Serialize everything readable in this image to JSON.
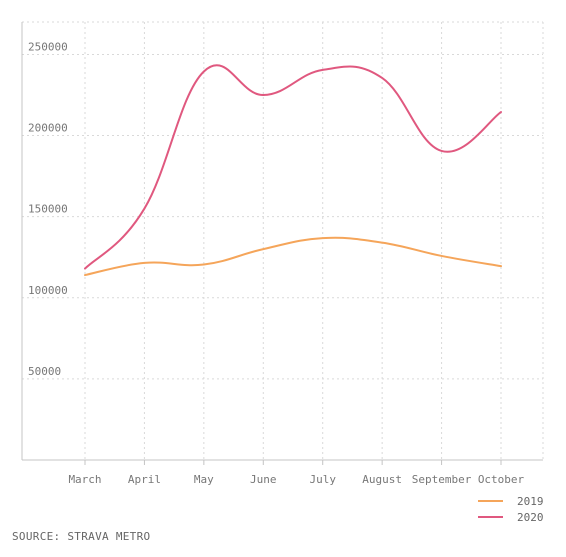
{
  "chart_data": {
    "type": "line",
    "title": "",
    "xlabel": "",
    "ylabel": "",
    "categories": [
      "March",
      "April",
      "May",
      "June",
      "July",
      "August",
      "September",
      "October"
    ],
    "y_ticks": [
      50000,
      100000,
      150000,
      200000,
      250000
    ],
    "ylim": [
      0,
      270000
    ],
    "grid": true,
    "legend_position": "bottom-right",
    "series": [
      {
        "name": "2019",
        "color": "#f5a55a",
        "values": [
          114000,
          121500,
          120500,
          130000,
          136800,
          134000,
          125800,
          119500
        ]
      },
      {
        "name": "2020",
        "color": "#e0587f",
        "values": [
          118000,
          155000,
          239500,
          225000,
          240500,
          235500,
          190500,
          214500
        ]
      }
    ]
  },
  "source_note": "SOURCE: STRAVA METRO"
}
